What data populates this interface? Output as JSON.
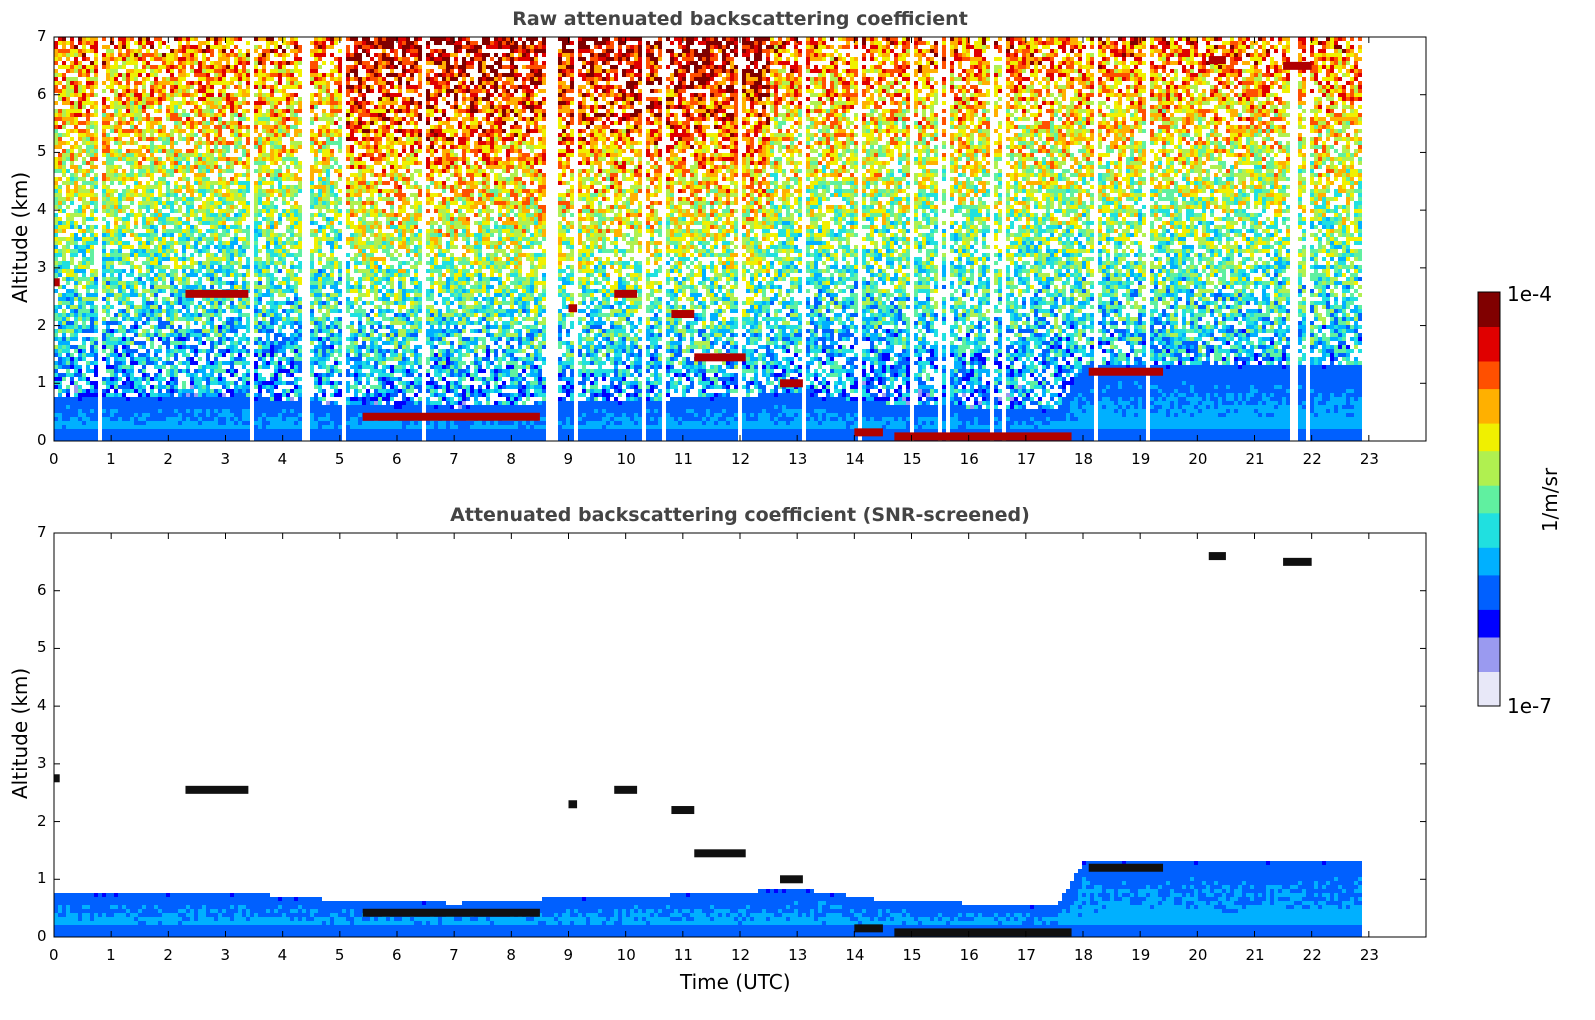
{
  "chart_data": [
    {
      "type": "heatmap",
      "title": "Raw attenuated backscattering coefficient",
      "xlabel": "",
      "ylabel": "Altitude (km)",
      "xlim": [
        0,
        24
      ],
      "ylim": [
        0,
        7
      ],
      "xticks": [
        0,
        1,
        2,
        3,
        4,
        5,
        6,
        7,
        8,
        9,
        10,
        11,
        12,
        13,
        14,
        15,
        16,
        17,
        18,
        19,
        20,
        21,
        22,
        23
      ],
      "yticks": [
        0,
        1,
        2,
        3,
        4,
        5,
        6,
        7
      ],
      "data_end_time": 22.9,
      "boundary_layer_top_km": [
        {
          "t": 0,
          "h": 0.75
        },
        {
          "t": 2,
          "h": 0.7
        },
        {
          "t": 3,
          "h": 0.75
        },
        {
          "t": 5,
          "h": 0.6
        },
        {
          "t": 7,
          "h": 0.55
        },
        {
          "t": 9,
          "h": 0.65
        },
        {
          "t": 11,
          "h": 0.7
        },
        {
          "t": 13,
          "h": 0.8
        },
        {
          "t": 14.5,
          "h": 0.6
        },
        {
          "t": 17.5,
          "h": 0.5
        },
        {
          "t": 18,
          "h": 1.3
        },
        {
          "t": 20,
          "h": 1.3
        },
        {
          "t": 23,
          "h": 1.3
        }
      ],
      "cloud_layers": [
        {
          "t0": 0.0,
          "t1": 0.1,
          "h": 2.75
        },
        {
          "t0": 2.3,
          "t1": 3.4,
          "h": 2.55
        },
        {
          "t0": 5.4,
          "t1": 8.5,
          "h": 0.42
        },
        {
          "t0": 9.0,
          "t1": 9.15,
          "h": 2.3
        },
        {
          "t0": 9.8,
          "t1": 10.2,
          "h": 2.55
        },
        {
          "t0": 10.8,
          "t1": 11.2,
          "h": 2.2
        },
        {
          "t0": 11.2,
          "t1": 12.1,
          "h": 1.45
        },
        {
          "t0": 12.7,
          "t1": 13.1,
          "h": 1.0
        },
        {
          "t0": 14.0,
          "t1": 14.5,
          "h": 0.15
        },
        {
          "t0": 14.7,
          "t1": 17.8,
          "h": 0.08
        },
        {
          "t0": 18.1,
          "t1": 19.4,
          "h": 1.2
        },
        {
          "t0": 20.2,
          "t1": 20.5,
          "h": 6.6
        },
        {
          "t0": 21.5,
          "t1": 22.0,
          "h": 6.5
        }
      ]
    },
    {
      "type": "heatmap",
      "title": "Attenuated backscattering coefficient (SNR-screened)",
      "xlabel": "Time (UTC)",
      "ylabel": "Altitude (km)",
      "xlim": [
        0,
        24
      ],
      "ylim": [
        0,
        7
      ],
      "xticks": [
        0,
        1,
        2,
        3,
        4,
        5,
        6,
        7,
        8,
        9,
        10,
        11,
        12,
        13,
        14,
        15,
        16,
        17,
        18,
        19,
        20,
        21,
        22,
        23
      ],
      "yticks": [
        0,
        1,
        2,
        3,
        4,
        5,
        6,
        7
      ],
      "data_end_time": 22.9
    }
  ],
  "colorbar": {
    "label": "1/m/sr",
    "max_label": "1e-4",
    "min_label": "1e-7",
    "colormap": [
      "#e8e8f8",
      "#9a9af0",
      "#0000ff",
      "#0060ff",
      "#00b0ff",
      "#20e0e0",
      "#60f0a0",
      "#b0f050",
      "#f0f000",
      "#ffb000",
      "#ff5000",
      "#e00000",
      "#800000"
    ]
  }
}
